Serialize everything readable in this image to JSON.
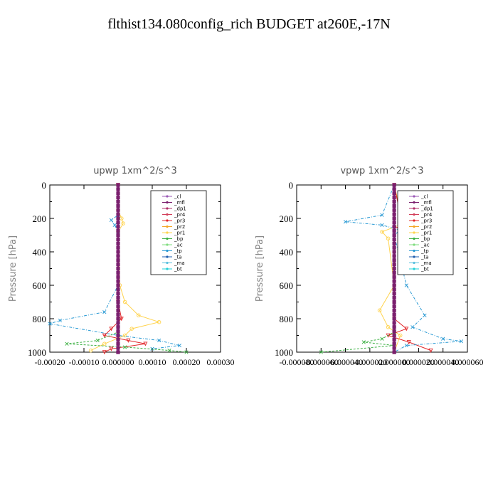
{
  "title": "flthist134.080config_rich  BUDGET at260E,-17N",
  "legend_items": [
    {
      "name": "_cl",
      "color": "#9b59b6"
    },
    {
      "name": "_mfl",
      "color": "#7a1f6e"
    },
    {
      "name": "_dp1",
      "color": "#b0306a"
    },
    {
      "name": "_pr4",
      "color": "#d33f5a"
    },
    {
      "name": "_pr3",
      "color": "#e2272a"
    },
    {
      "name": "_pr2",
      "color": "#f5a623"
    },
    {
      "name": "_pr1",
      "color": "#ffd34d"
    },
    {
      "name": "_bp",
      "color": "#3cb043"
    },
    {
      "name": "_ac",
      "color": "#7fdc7f"
    },
    {
      "name": "_tp",
      "color": "#2a9ad4"
    },
    {
      "name": "_ta",
      "color": "#1f5fb0"
    },
    {
      "name": "_ma",
      "color": "#5bc0de"
    },
    {
      "name": "_bt",
      "color": "#20d0d8"
    }
  ],
  "chart_data": [
    {
      "type": "line",
      "title": "upwp   1xm^2/s^3",
      "ylabel": "Pressure [hPa]",
      "xlabel": "",
      "ylim": [
        1000,
        0
      ],
      "xlim": [
        -0.0002,
        0.0003
      ],
      "xticks": [
        "-0.00020",
        "-0.00010",
        "0.000000",
        "0.00010",
        "0.00020",
        "0.00030"
      ],
      "yticks": [
        "0",
        "200",
        "400",
        "600",
        "800",
        "1000"
      ],
      "series": [
        {
          "name": "_pr1",
          "color": "#ffd34d",
          "marker": "o",
          "points": [
            [
              0.0,
              0
            ],
            [
              0.0,
              150
            ],
            [
              1e-05,
              200
            ],
            [
              1.5e-05,
              230
            ],
            [
              0.0,
              280
            ],
            [
              5e-06,
              600
            ],
            [
              2e-05,
              700
            ],
            [
              6e-05,
              780
            ],
            [
              0.00012,
              820
            ],
            [
              4e-05,
              860
            ],
            [
              2e-05,
              900
            ],
            [
              -4e-05,
              950
            ],
            [
              -8e-05,
              990
            ]
          ]
        },
        {
          "name": "_pr3",
          "color": "#e2272a",
          "marker": "v",
          "points": [
            [
              0.0,
              0
            ],
            [
              0.0,
              700
            ],
            [
              1e-05,
              800
            ],
            [
              -2e-05,
              860
            ],
            [
              -4e-05,
              900
            ],
            [
              3e-05,
              930
            ],
            [
              8e-05,
              950
            ],
            [
              -2e-05,
              980
            ],
            [
              -4e-05,
              1000
            ]
          ]
        },
        {
          "name": "_tp",
          "color": "#2a9ad4",
          "marker": "x",
          "points": [
            [
              0.0,
              0
            ],
            [
              0.0,
              180
            ],
            [
              -2e-05,
              210
            ],
            [
              -1e-05,
              240
            ],
            [
              0.0,
              280
            ],
            [
              0.0,
              600
            ],
            [
              -4e-05,
              760
            ],
            [
              -0.00017,
              810
            ],
            [
              -0.0002,
              830
            ],
            [
              0.0,
              900
            ],
            [
              0.00012,
              930
            ],
            [
              0.00018,
              960
            ],
            [
              0.0001,
              980
            ]
          ]
        },
        {
          "name": "_bp",
          "color": "#3cb043",
          "marker": "x",
          "points": [
            [
              0.0,
              0
            ],
            [
              0.0,
              880
            ],
            [
              -6e-05,
              930
            ],
            [
              -0.00015,
              950
            ],
            [
              2e-05,
              970
            ],
            [
              0.00015,
              990
            ],
            [
              0.0002,
              1000
            ]
          ]
        },
        {
          "name": "_mfl",
          "color": "#7a1f6e",
          "marker": "s",
          "points": [
            [
              0.0,
              0
            ],
            [
              0.0,
              1000
            ]
          ]
        }
      ]
    },
    {
      "type": "line",
      "title": "vpwp   1xm^2/s^3",
      "ylabel": "Pressure [hPa]",
      "xlabel": "",
      "ylim": [
        1000,
        0
      ],
      "xlim": [
        -8e-05,
        6e-05
      ],
      "xticks": [
        "-0.000080",
        "-0.000060",
        "-0.000040",
        "-0.000020",
        "0.000000",
        "0.000020",
        "0.000040",
        "0.000060"
      ],
      "yticks": [
        "0",
        "200",
        "400",
        "600",
        "800",
        "1000"
      ],
      "series": [
        {
          "name": "_pr1",
          "color": "#ffd34d",
          "marker": "o",
          "points": [
            [
              0.0,
              0
            ],
            [
              5e-06,
              150
            ],
            [
              1.5e-05,
              210
            ],
            [
              -1e-05,
              280
            ],
            [
              -5e-06,
              320
            ],
            [
              0.0,
              600
            ],
            [
              -1.2e-05,
              750
            ],
            [
              -5e-06,
              850
            ],
            [
              5e-06,
              900
            ],
            [
              0.0,
              1000
            ]
          ]
        },
        {
          "name": "_pr3",
          "color": "#e2272a",
          "marker": "v",
          "points": [
            [
              0.0,
              0
            ],
            [
              5e-06,
              180
            ],
            [
              1.5e-05,
              220
            ],
            [
              0.0,
              260
            ],
            [
              0.0,
              800
            ],
            [
              1e-05,
              860
            ],
            [
              -5e-06,
              900
            ],
            [
              1.2e-05,
              940
            ],
            [
              3e-05,
              990
            ]
          ]
        },
        {
          "name": "_tp",
          "color": "#2a9ad4",
          "marker": "x",
          "points": [
            [
              0.0,
              0
            ],
            [
              -1e-05,
              180
            ],
            [
              -4e-05,
              220
            ],
            [
              -1e-05,
              240
            ],
            [
              5e-06,
              270
            ],
            [
              0.0,
              300
            ],
            [
              1e-05,
              600
            ],
            [
              2.5e-05,
              780
            ],
            [
              1.5e-05,
              850
            ],
            [
              4e-05,
              920
            ],
            [
              5.5e-05,
              935
            ],
            [
              1e-05,
              960
            ],
            [
              0.0,
              1000
            ]
          ]
        },
        {
          "name": "_bp",
          "color": "#3cb043",
          "marker": "x",
          "points": [
            [
              0.0,
              0
            ],
            [
              0.0,
              880
            ],
            [
              -1e-05,
              920
            ],
            [
              -2.5e-05,
              940
            ],
            [
              0.0,
              960
            ],
            [
              -6e-05,
              1000
            ]
          ]
        },
        {
          "name": "_mfl",
          "color": "#7a1f6e",
          "marker": "s",
          "points": [
            [
              0.0,
              0
            ],
            [
              0.0,
              1000
            ]
          ]
        }
      ]
    }
  ]
}
